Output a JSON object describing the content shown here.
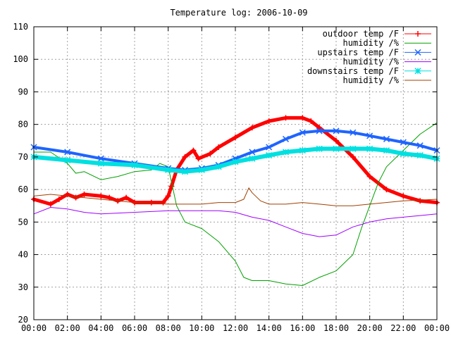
{
  "chart_data": {
    "type": "line",
    "title": "Temperature log: 2006-10-09",
    "xlabel": "",
    "ylabel": "",
    "x_unit": "hours",
    "xlim": [
      0,
      24
    ],
    "ylim": [
      20,
      110
    ],
    "x_ticks": [
      {
        "value": 0,
        "label": "00:00"
      },
      {
        "value": 2,
        "label": "02:00"
      },
      {
        "value": 4,
        "label": "04:00"
      },
      {
        "value": 6,
        "label": "06:00"
      },
      {
        "value": 8,
        "label": "08:00"
      },
      {
        "value": 10,
        "label": "10:00"
      },
      {
        "value": 12,
        "label": "12:00"
      },
      {
        "value": 14,
        "label": "14:00"
      },
      {
        "value": 16,
        "label": "16:00"
      },
      {
        "value": 18,
        "label": "18:00"
      },
      {
        "value": 20,
        "label": "20:00"
      },
      {
        "value": 22,
        "label": "22:00"
      },
      {
        "value": 24,
        "label": "00:00"
      }
    ],
    "y_ticks": [
      20,
      30,
      40,
      50,
      60,
      70,
      80,
      90,
      100,
      110
    ],
    "grid": true,
    "legend_position": "top-right",
    "series": [
      {
        "name": "outdoor temp /F",
        "color": "#ff0000",
        "marker": "plus",
        "line_width": 5,
        "points": [
          [
            0,
            57
          ],
          [
            1,
            55.5
          ],
          [
            1.5,
            57
          ],
          [
            2,
            58.5
          ],
          [
            2.5,
            57.5
          ],
          [
            3,
            58.5
          ],
          [
            4,
            58
          ],
          [
            4.5,
            57.5
          ],
          [
            5,
            56.5
          ],
          [
            5.5,
            57.5
          ],
          [
            6,
            56
          ],
          [
            7,
            56
          ],
          [
            7.7,
            56
          ],
          [
            8,
            58
          ],
          [
            8.2,
            61
          ],
          [
            8.5,
            66
          ],
          [
            9,
            70
          ],
          [
            9.5,
            72
          ],
          [
            9.8,
            69.5
          ],
          [
            10.5,
            71
          ],
          [
            11,
            73
          ],
          [
            12,
            76
          ],
          [
            13,
            79
          ],
          [
            14,
            81
          ],
          [
            15,
            82
          ],
          [
            16,
            82
          ],
          [
            16.5,
            81
          ],
          [
            17,
            79
          ],
          [
            18,
            75
          ],
          [
            19,
            70
          ],
          [
            20,
            64
          ],
          [
            21,
            60
          ],
          [
            22,
            58
          ],
          [
            23,
            56.5
          ],
          [
            24,
            56
          ]
        ]
      },
      {
        "name": "humidity /%",
        "color": "#00a000",
        "marker": "none",
        "line_width": 1,
        "points": [
          [
            0,
            71.5
          ],
          [
            1,
            71.5
          ],
          [
            2,
            68
          ],
          [
            2.5,
            65
          ],
          [
            3,
            65.5
          ],
          [
            4,
            63
          ],
          [
            5,
            64
          ],
          [
            6,
            65.5
          ],
          [
            7,
            66
          ],
          [
            7.5,
            68
          ],
          [
            8,
            67
          ],
          [
            8.5,
            55
          ],
          [
            9,
            50
          ],
          [
            10,
            48
          ],
          [
            11,
            44
          ],
          [
            12,
            38
          ],
          [
            12.5,
            33
          ],
          [
            13,
            32
          ],
          [
            14,
            32
          ],
          [
            15,
            31
          ],
          [
            16,
            30.5
          ],
          [
            17,
            33
          ],
          [
            18,
            35
          ],
          [
            19,
            40
          ],
          [
            19.5,
            48
          ],
          [
            20,
            55
          ],
          [
            20.5,
            62
          ],
          [
            21,
            67
          ],
          [
            22,
            72
          ],
          [
            23,
            77
          ],
          [
            24,
            80.5
          ]
        ]
      },
      {
        "name": "upstairs temp /F",
        "color": "#1e64ff",
        "marker": "cross",
        "line_width": 4,
        "points": [
          [
            0,
            73
          ],
          [
            2,
            71.5
          ],
          [
            4,
            69.5
          ],
          [
            6,
            68
          ],
          [
            8,
            66.5
          ],
          [
            9,
            66
          ],
          [
            10,
            66.5
          ],
          [
            11,
            67.5
          ],
          [
            12,
            69.5
          ],
          [
            13,
            71.5
          ],
          [
            14,
            73
          ],
          [
            15,
            75.5
          ],
          [
            16,
            77.5
          ],
          [
            17,
            78
          ],
          [
            18,
            78
          ],
          [
            19,
            77.5
          ],
          [
            20,
            76.5
          ],
          [
            21,
            75.5
          ],
          [
            22,
            74.5
          ],
          [
            23,
            73.5
          ],
          [
            24,
            72
          ]
        ]
      },
      {
        "name": "humidity /%",
        "color": "#a000ff",
        "marker": "none",
        "line_width": 1,
        "points": [
          [
            0,
            52.5
          ],
          [
            1,
            54.5
          ],
          [
            2,
            54
          ],
          [
            3,
            53
          ],
          [
            4,
            52.5
          ],
          [
            6,
            53
          ],
          [
            8,
            53.5
          ],
          [
            10,
            53.5
          ],
          [
            11,
            53.5
          ],
          [
            12,
            53
          ],
          [
            13,
            51.5
          ],
          [
            14,
            50.5
          ],
          [
            15,
            48.5
          ],
          [
            16,
            46.5
          ],
          [
            17,
            45.5
          ],
          [
            18,
            46
          ],
          [
            19,
            48.5
          ],
          [
            20,
            50
          ],
          [
            21,
            51
          ],
          [
            22,
            51.5
          ],
          [
            23,
            52
          ],
          [
            24,
            52.5
          ]
        ]
      },
      {
        "name": "downstairs temp /F",
        "color": "#00e0e0",
        "marker": "star",
        "line_width": 6,
        "points": [
          [
            0,
            70
          ],
          [
            2,
            69
          ],
          [
            4,
            68
          ],
          [
            6,
            67.5
          ],
          [
            8,
            66
          ],
          [
            9,
            65.5
          ],
          [
            10,
            66
          ],
          [
            11,
            67
          ],
          [
            12,
            68.5
          ],
          [
            13,
            69.5
          ],
          [
            14,
            70.5
          ],
          [
            15,
            71.5
          ],
          [
            16,
            72
          ],
          [
            17,
            72.5
          ],
          [
            18,
            72.5
          ],
          [
            19,
            72.5
          ],
          [
            20,
            72.5
          ],
          [
            21,
            72
          ],
          [
            22,
            71
          ],
          [
            23,
            70.5
          ],
          [
            24,
            69.5
          ]
        ]
      },
      {
        "name": "humidity /%",
        "color": "#a04000",
        "marker": "none",
        "line_width": 1,
        "points": [
          [
            0,
            58
          ],
          [
            1,
            58.5
          ],
          [
            2,
            58
          ],
          [
            4,
            57
          ],
          [
            6,
            56
          ],
          [
            8,
            55.5
          ],
          [
            10,
            55.5
          ],
          [
            11,
            56
          ],
          [
            12,
            56
          ],
          [
            12.5,
            57
          ],
          [
            12.8,
            60.5
          ],
          [
            13,
            59
          ],
          [
            13.5,
            56.5
          ],
          [
            14,
            55.5
          ],
          [
            15,
            55.5
          ],
          [
            16,
            56
          ],
          [
            17,
            55.5
          ],
          [
            18,
            55
          ],
          [
            19,
            55
          ],
          [
            20,
            55.5
          ],
          [
            22,
            56.5
          ],
          [
            24,
            57
          ]
        ]
      }
    ]
  }
}
